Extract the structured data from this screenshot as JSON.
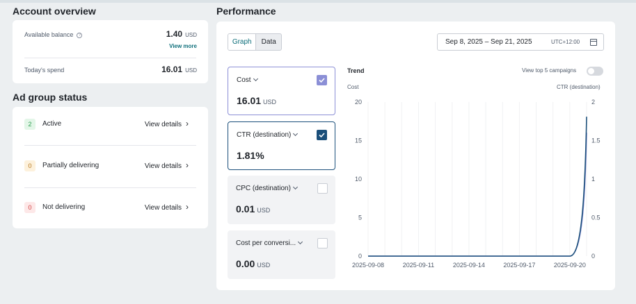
{
  "account_overview": {
    "title": "Account overview",
    "available_balance_label": "Available balance",
    "available_balance_value": "1.40",
    "available_balance_unit": "USD",
    "view_more": "View more",
    "todays_spend_label": "Today's spend",
    "todays_spend_value": "16.01",
    "todays_spend_unit": "USD"
  },
  "ad_group_status": {
    "title": "Ad group status",
    "rows": [
      {
        "count": "2",
        "label": "Active",
        "details": "View details"
      },
      {
        "count": "0",
        "label": "Partially delivering",
        "details": "View details"
      },
      {
        "count": "0",
        "label": "Not delivering",
        "details": "View details"
      }
    ]
  },
  "performance": {
    "title": "Performance",
    "view_tabs": [
      "Graph",
      "Data"
    ],
    "selected_tab": "Graph",
    "date_range": "Sep 8, 2025 – Sep 21, 2025",
    "timezone": "UTC+12:00",
    "metrics": [
      {
        "label": "Cost",
        "value": "16.01",
        "unit": "USD",
        "checked": true,
        "color": "#8b8fd6"
      },
      {
        "label": "CTR (destination)",
        "value": "1.81%",
        "unit": "",
        "checked": true,
        "color": "#1b4f7a"
      },
      {
        "label": "CPC (destination)",
        "value": "0.01",
        "unit": "USD",
        "checked": false
      },
      {
        "label": "Cost per conversi...",
        "value": "0.00",
        "unit": "USD",
        "checked": false
      }
    ],
    "trend_title": "Trend",
    "view_top_label": "View top 5 campaigns",
    "view_top_enabled": false,
    "left_axis_label": "Cost",
    "right_axis_label": "CTR (destination)"
  },
  "chart_data": {
    "type": "line",
    "x": [
      "2025-09-08",
      "2025-09-09",
      "2025-09-10",
      "2025-09-11",
      "2025-09-12",
      "2025-09-13",
      "2025-09-14",
      "2025-09-15",
      "2025-09-16",
      "2025-09-17",
      "2025-09-18",
      "2025-09-19",
      "2025-09-20",
      "2025-09-21"
    ],
    "x_tick_labels": [
      "2025-09-08",
      "2025-09-11",
      "2025-09-14",
      "2025-09-17",
      "2025-09-20"
    ],
    "series": [
      {
        "name": "Cost",
        "axis": "left",
        "color": "#8b8fd6",
        "values": [
          0,
          0,
          0,
          0,
          0,
          0,
          0,
          0,
          0,
          0,
          0,
          0,
          0,
          16.01
        ]
      },
      {
        "name": "CTR (destination)",
        "axis": "right",
        "color": "#1b4f7a",
        "values": [
          0,
          0,
          0,
          0,
          0,
          0,
          0,
          0,
          0,
          0,
          0,
          0,
          0,
          1.81
        ]
      }
    ],
    "ylim_left": [
      0,
      20
    ],
    "yticks_left": [
      "0",
      "5",
      "10",
      "15",
      "20"
    ],
    "ylim_right": [
      0,
      2
    ],
    "yticks_right": [
      "0",
      "0.5",
      "1",
      "1.5",
      "2"
    ],
    "grid": "vertical"
  }
}
